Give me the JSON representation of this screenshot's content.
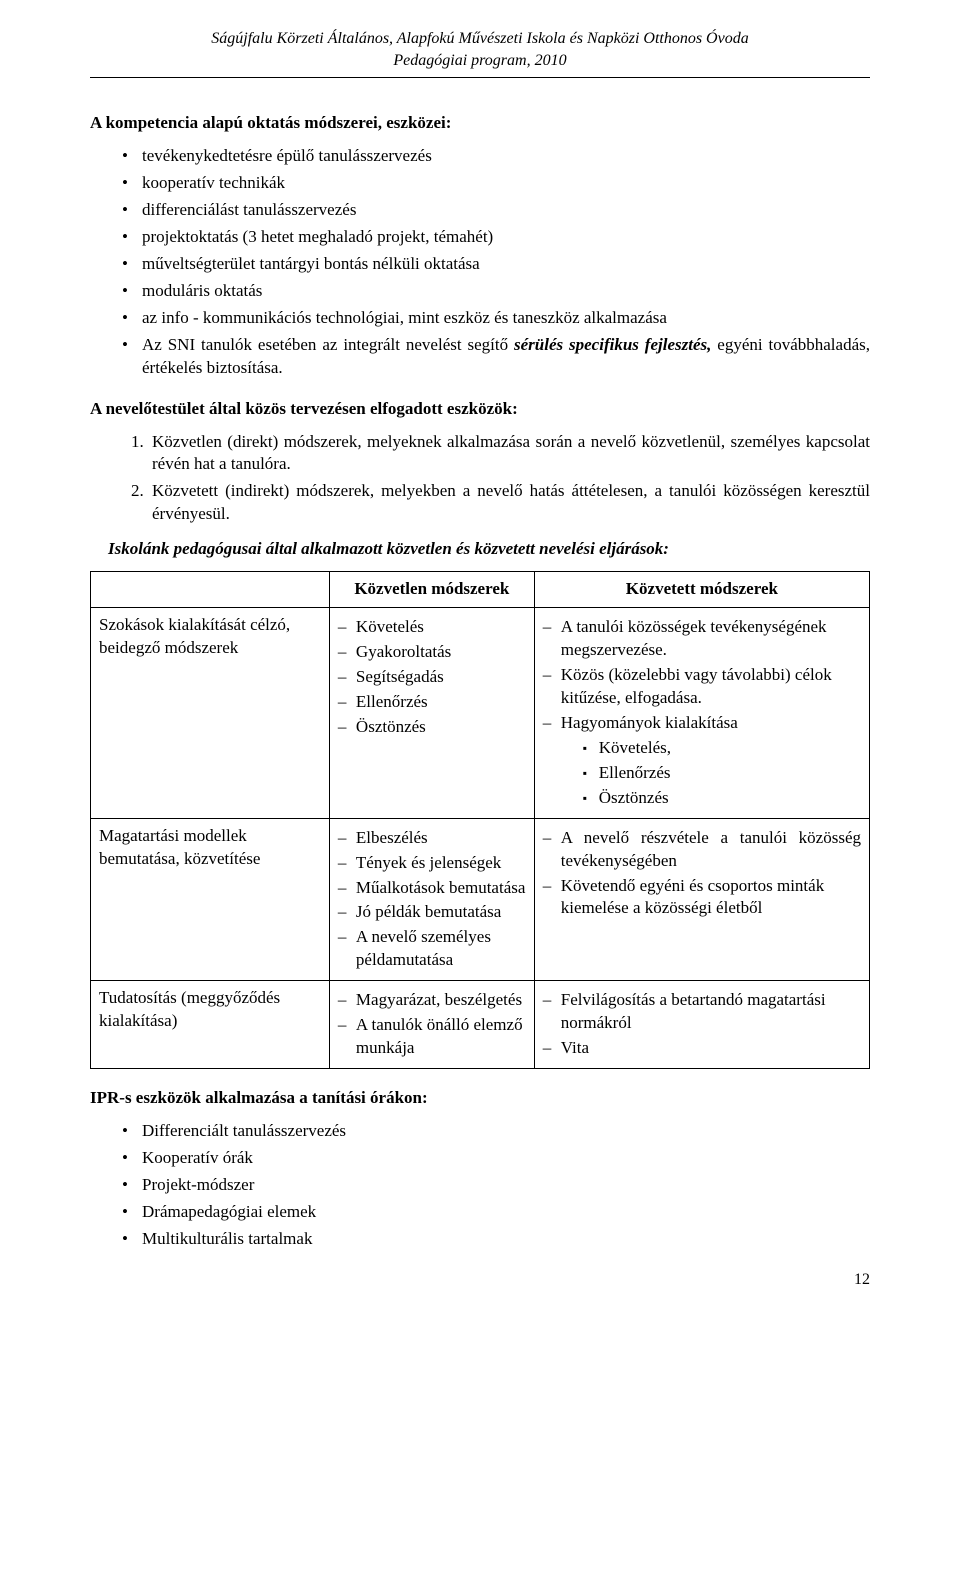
{
  "header": {
    "line1": "Ságújfalu Körzeti Általános, Alapfokú Művészeti Iskola és Napközi Otthonos Óvoda",
    "line2": "Pedagógiai program, 2010"
  },
  "section1": {
    "title": "A kompetencia alapú oktatás módszerei, eszközei:",
    "items": {
      "0": "tevékenykedtetésre épülő tanulásszervezés",
      "1": "kooperatív technikák",
      "2": "differenciálást tanulásszervezés",
      "3": "projektoktatás (3 hetet meghaladó projekt, témahét)",
      "4": "műveltségterület tantárgyi bontás nélküli oktatása",
      "5": "moduláris oktatás",
      "6": "az info - kommunikációs technológiai, mint eszköz és taneszköz alkalmazása",
      "7_pre": "Az SNI tanulók esetében az integrált nevelést segítő ",
      "7_bi": "sérülés specifikus fejlesztés,",
      "7_post": " egyéni továbbhaladás, értékelés biztosítása."
    }
  },
  "section2": {
    "title": "A nevelőtestület által közös tervezésen elfogadott eszközök:",
    "items": {
      "0": "Közvetlen (direkt) módszerek, melyeknek alkalmazása során a nevelő közvetlenül, személyes kapcsolat révén hat a tanulóra.",
      "1": "Közvetett (indirekt) módszerek, melyekben a nevelő hatás áttételesen, a tanulói közösségen keresztül érvényesül."
    }
  },
  "section3": {
    "intro": "Iskolánk pedagógusai által alkalmazott közvetlen és közvetett nevelési eljárások:",
    "col1": "Közvetlen módszerek",
    "col2": "Közvetett módszerek",
    "rows": {
      "0": {
        "label": "Szokások kialakítását célzó, beidegző módszerek",
        "left": {
          "0": "Követelés",
          "1": "Gyakoroltatás",
          "2": "Segítségadás",
          "3": "Ellenőrzés",
          "4": "Ösztönzés"
        },
        "right": {
          "0": "A tanulói közösségek tevékenységének megszervezése.",
          "1": "Közös (közelebbi vagy távolabbi) célok kitűzése, elfogadása.",
          "2": "Hagyományok kialakítása",
          "sub": {
            "0": "Követelés,",
            "1": "Ellenőrzés",
            "2": "Ösztönzés"
          }
        }
      },
      "1": {
        "label": "Magatartási modellek bemutatása, közvetítése",
        "left": {
          "0": "Elbeszélés",
          "1": "Tények és jelenségek",
          "2": "Műalkotások bemutatása",
          "3": "Jó példák bemutatása",
          "4": "A nevelő személyes példamutatása"
        },
        "right": {
          "0": "A nevelő részvétele a tanulói közösség tevékenységében",
          "1": "Követendő egyéni és csoportos minták kiemelése a közösségi életből"
        }
      },
      "2": {
        "label": "Tudatosítás (meggyőződés kialakítása)",
        "left": {
          "0": "Magyarázat, beszélgetés",
          "1": "A tanulók önálló elemző munkája"
        },
        "right": {
          "0": "Felvilágosítás a betartandó magatartási normákról",
          "1": "Vita"
        }
      }
    }
  },
  "section4": {
    "title": "IPR-s eszközök alkalmazása a tanítási órákon:",
    "items": {
      "0": "Differenciált tanulásszervezés",
      "1": "Kooperatív órák",
      "2": "Projekt-módszer",
      "3": "Drámapedagógiai elemek",
      "4": "Multikulturális tartalmak"
    }
  },
  "page_number": "12"
}
